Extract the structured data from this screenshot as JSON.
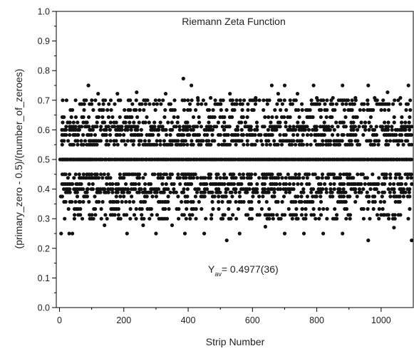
{
  "chart_data": {
    "type": "scatter",
    "title": "Riemann Zeta Function",
    "xlabel": "Strip Number",
    "ylabel": "(primary_zero - 0.5)/(number_of_zeroes)",
    "xlim": [
      -10,
      1100
    ],
    "ylim": [
      0.0,
      1.0
    ],
    "xticks": [
      "0",
      "200",
      "400",
      "600",
      "800",
      "1000"
    ],
    "xtick_values": [
      0,
      200,
      400,
      600,
      800,
      1000
    ],
    "yticks": [
      "0.0",
      "0.1",
      "0.2",
      "0.3",
      "0.4",
      "0.5",
      "0.6",
      "0.7",
      "0.8",
      "0.9",
      "1.0"
    ],
    "ytick_values": [
      0.0,
      0.1,
      0.2,
      0.3,
      0.4,
      0.5,
      0.6,
      0.7,
      0.8,
      0.9,
      1.0
    ],
    "grid": false,
    "legend": "none",
    "marker_color": "#111111",
    "annotation": {
      "main": "Y",
      "sub": "av",
      "rest": "= 0.4977(36)"
    },
    "band_levels": [
      0.3,
      0.313,
      0.333,
      0.357,
      0.375,
      0.389,
      0.4,
      0.417,
      0.438,
      0.45,
      0.5,
      0.55,
      0.563,
      0.583,
      0.6,
      0.611,
      0.625,
      0.643,
      0.667,
      0.687,
      0.7
    ],
    "sparse_levels": [
      0.227,
      0.25,
      0.273,
      0.278,
      0.292,
      0.708,
      0.722,
      0.727,
      0.75,
      0.773
    ],
    "series": [
      {
        "x": [
          2,
          8,
          14,
          20,
          26,
          32,
          38,
          44,
          50,
          56,
          62,
          68,
          74,
          80,
          86,
          92,
          98,
          4,
          10,
          16,
          22,
          28,
          34,
          40,
          46,
          52,
          58,
          64,
          70,
          76,
          82,
          88,
          94,
          100,
          30,
          50,
          90,
          140,
          210,
          260,
          300,
          350,
          390,
          450,
          520,
          560,
          640,
          700,
          760,
          820,
          880,
          960,
          1040,
          1095,
          5,
          10,
          40,
          90,
          385,
          410,
          660,
          700,
          790,
          880,
          960,
          1020,
          1085,
          120,
          180,
          240,
          330,
          430,
          470,
          530,
          610,
          680,
          740,
          800,
          850,
          920,
          980,
          1060
        ],
        "y": [
          0.5,
          0.5,
          0.5,
          0.5,
          0.5,
          0.5,
          0.5,
          0.5,
          0.5,
          0.5,
          0.5,
          0.5,
          0.5,
          0.5,
          0.5,
          0.5,
          0.5,
          0.375,
          0.625,
          0.3,
          0.7,
          0.333,
          0.667,
          0.417,
          0.583,
          0.417,
          0.583,
          0.357,
          0.643,
          0.375,
          0.625,
          0.4,
          0.6,
          0.45,
          0.25,
          0.7,
          0.75,
          0.278,
          0.25,
          0.278,
          0.25,
          0.278,
          0.25,
          0.25,
          0.227,
          0.25,
          0.273,
          0.25,
          0.25,
          0.25,
          0.25,
          0.227,
          0.27,
          0.227,
          0.25,
          0.7,
          0.25,
          0.75,
          0.773,
          0.75,
          0.75,
          0.75,
          0.75,
          0.75,
          0.75,
          0.727,
          0.75,
          0.722,
          0.722,
          0.727,
          0.722,
          0.708,
          0.708,
          0.722,
          0.708,
          0.722,
          0.722,
          0.708,
          0.708,
          0.708,
          0.708,
          0.708
        ]
      }
    ]
  }
}
